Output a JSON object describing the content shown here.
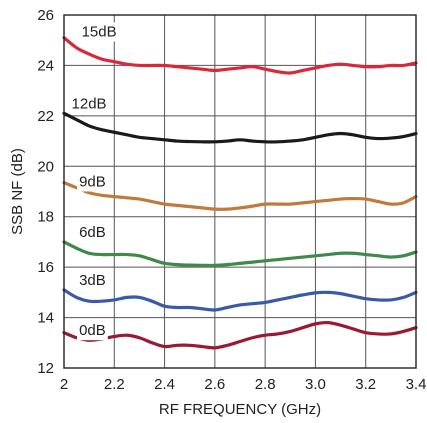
{
  "chart_data": {
    "type": "line",
    "title": "",
    "xlabel": "RF FREQUENCY (GHz)",
    "ylabel": "SSB NF (dB)",
    "xlim": [
      2.0,
      3.4
    ],
    "ylim": [
      12,
      26
    ],
    "x_ticks": [
      "2",
      "2.2",
      "2.4",
      "2.6",
      "2.8",
      "3.0",
      "3.2",
      "3.4"
    ],
    "y_ticks": [
      "12",
      "14",
      "16",
      "18",
      "20",
      "22",
      "24",
      "26"
    ],
    "grid": true,
    "legend": "none",
    "series": [
      {
        "name": "15dB",
        "color": "#d9283a",
        "label_x": 2.07,
        "label_y": 25.15,
        "x": [
          2.0,
          2.05,
          2.1,
          2.15,
          2.2,
          2.25,
          2.3,
          2.35,
          2.4,
          2.45,
          2.5,
          2.55,
          2.6,
          2.65,
          2.7,
          2.75,
          2.8,
          2.85,
          2.9,
          2.95,
          3.0,
          3.05,
          3.1,
          3.15,
          3.2,
          3.25,
          3.3,
          3.35,
          3.4
        ],
        "y": [
          25.1,
          24.7,
          24.45,
          24.25,
          24.15,
          24.05,
          24.0,
          24.0,
          24.0,
          23.95,
          23.9,
          23.85,
          23.8,
          23.85,
          23.9,
          23.95,
          23.85,
          23.75,
          23.7,
          23.8,
          23.9,
          24.0,
          24.05,
          24.0,
          23.95,
          23.95,
          24.0,
          24.0,
          24.1
        ]
      },
      {
        "name": "12dB",
        "color": "#1a1a1a",
        "label_x": 2.03,
        "label_y": 22.3,
        "x": [
          2.0,
          2.05,
          2.1,
          2.15,
          2.2,
          2.25,
          2.3,
          2.35,
          2.4,
          2.45,
          2.5,
          2.55,
          2.6,
          2.65,
          2.7,
          2.75,
          2.8,
          2.85,
          2.9,
          2.95,
          3.0,
          3.05,
          3.1,
          3.15,
          3.2,
          3.25,
          3.3,
          3.35,
          3.4
        ],
        "y": [
          22.1,
          21.85,
          21.6,
          21.45,
          21.35,
          21.25,
          21.15,
          21.1,
          21.05,
          21.0,
          20.98,
          20.97,
          20.97,
          21.0,
          21.05,
          21.0,
          20.97,
          20.97,
          21.0,
          21.05,
          21.15,
          21.25,
          21.3,
          21.25,
          21.15,
          21.1,
          21.12,
          21.18,
          21.3
        ]
      },
      {
        "name": "9dB",
        "color": "#c07a3a",
        "label_x": 2.06,
        "label_y": 19.2,
        "x": [
          2.0,
          2.05,
          2.1,
          2.15,
          2.2,
          2.25,
          2.3,
          2.35,
          2.4,
          2.45,
          2.5,
          2.55,
          2.6,
          2.65,
          2.7,
          2.75,
          2.8,
          2.85,
          2.9,
          2.95,
          3.0,
          3.05,
          3.1,
          3.15,
          3.2,
          3.25,
          3.3,
          3.35,
          3.4
        ],
        "y": [
          19.35,
          19.15,
          18.95,
          18.85,
          18.8,
          18.75,
          18.7,
          18.6,
          18.5,
          18.45,
          18.4,
          18.35,
          18.3,
          18.3,
          18.35,
          18.42,
          18.5,
          18.5,
          18.5,
          18.55,
          18.6,
          18.65,
          18.7,
          18.72,
          18.7,
          18.6,
          18.5,
          18.55,
          18.8
        ]
      },
      {
        "name": "6dB",
        "color": "#3d8a4a",
        "label_x": 2.06,
        "label_y": 17.2,
        "x": [
          2.0,
          2.05,
          2.1,
          2.15,
          2.2,
          2.25,
          2.3,
          2.35,
          2.4,
          2.45,
          2.5,
          2.55,
          2.6,
          2.65,
          2.7,
          2.75,
          2.8,
          2.85,
          2.9,
          2.95,
          3.0,
          3.05,
          3.1,
          3.15,
          3.2,
          3.25,
          3.3,
          3.35,
          3.4
        ],
        "y": [
          17.0,
          16.75,
          16.55,
          16.5,
          16.5,
          16.5,
          16.45,
          16.3,
          16.15,
          16.1,
          16.08,
          16.07,
          16.07,
          16.1,
          16.15,
          16.2,
          16.25,
          16.3,
          16.35,
          16.4,
          16.45,
          16.5,
          16.55,
          16.55,
          16.5,
          16.45,
          16.4,
          16.45,
          16.6
        ]
      },
      {
        "name": "3dB",
        "color": "#3a5aa8",
        "label_x": 2.06,
        "label_y": 15.3,
        "x": [
          2.0,
          2.05,
          2.1,
          2.15,
          2.2,
          2.25,
          2.3,
          2.35,
          2.4,
          2.45,
          2.5,
          2.55,
          2.6,
          2.65,
          2.7,
          2.75,
          2.8,
          2.85,
          2.9,
          2.95,
          3.0,
          3.05,
          3.1,
          3.15,
          3.2,
          3.25,
          3.3,
          3.35,
          3.4
        ],
        "y": [
          15.1,
          14.8,
          14.65,
          14.65,
          14.7,
          14.8,
          14.8,
          14.65,
          14.45,
          14.4,
          14.4,
          14.35,
          14.3,
          14.4,
          14.5,
          14.55,
          14.6,
          14.7,
          14.8,
          14.9,
          14.98,
          15.0,
          14.95,
          14.85,
          14.75,
          14.7,
          14.7,
          14.8,
          15.0
        ]
      },
      {
        "name": "0dB",
        "color": "#9a1a34",
        "label_x": 2.06,
        "label_y": 13.3,
        "x": [
          2.0,
          2.05,
          2.1,
          2.15,
          2.2,
          2.25,
          2.3,
          2.35,
          2.4,
          2.45,
          2.5,
          2.55,
          2.6,
          2.65,
          2.7,
          2.75,
          2.8,
          2.85,
          2.9,
          2.95,
          3.0,
          3.05,
          3.1,
          3.15,
          3.2,
          3.25,
          3.3,
          3.35,
          3.4
        ],
        "y": [
          13.4,
          13.2,
          13.1,
          13.15,
          13.25,
          13.3,
          13.2,
          13.0,
          12.85,
          12.9,
          12.9,
          12.85,
          12.8,
          12.9,
          13.05,
          13.2,
          13.3,
          13.35,
          13.45,
          13.6,
          13.75,
          13.8,
          13.7,
          13.55,
          13.4,
          13.35,
          13.35,
          13.45,
          13.6
        ]
      }
    ]
  }
}
